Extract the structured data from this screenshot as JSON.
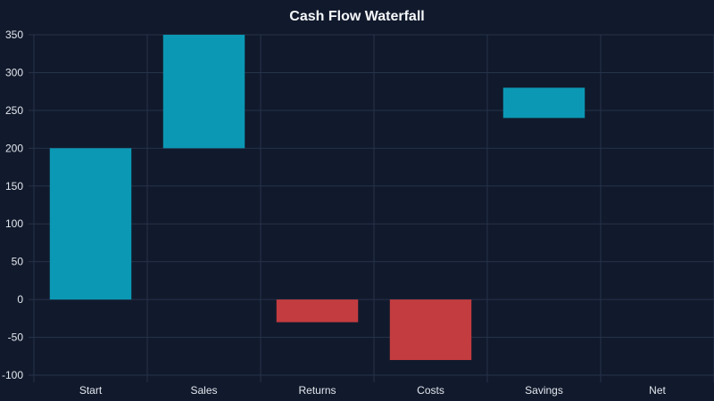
{
  "chart_data": {
    "type": "bar",
    "subtype": "waterfall",
    "title": "Cash Flow Waterfall",
    "xlabel": "",
    "ylabel": "",
    "categories": [
      "Start",
      "Sales",
      "Returns",
      "Costs",
      "Savings",
      "Net"
    ],
    "bars": [
      {
        "category": "Start",
        "from": 0,
        "to": 200,
        "kind": "increase"
      },
      {
        "category": "Sales",
        "from": 200,
        "to": 350,
        "kind": "increase"
      },
      {
        "category": "Returns",
        "from": 0,
        "to": -30,
        "kind": "decrease"
      },
      {
        "category": "Costs",
        "from": 0,
        "to": -80,
        "kind": "decrease"
      },
      {
        "category": "Savings",
        "from": 240,
        "to": 280,
        "kind": "increase"
      },
      {
        "category": "Net",
        "from": null,
        "to": null,
        "kind": "total"
      }
    ],
    "ylim": [
      -100,
      350
    ],
    "yticks": [
      350,
      300,
      250,
      200,
      150,
      100,
      50,
      0,
      -50,
      -100
    ],
    "grid": true,
    "legend": "none",
    "colors": {
      "background": "#111a2c",
      "increase": "#0b98b4",
      "decrease": "#c33c40",
      "grid": "#26324a",
      "text": "#e3e7ee"
    }
  }
}
